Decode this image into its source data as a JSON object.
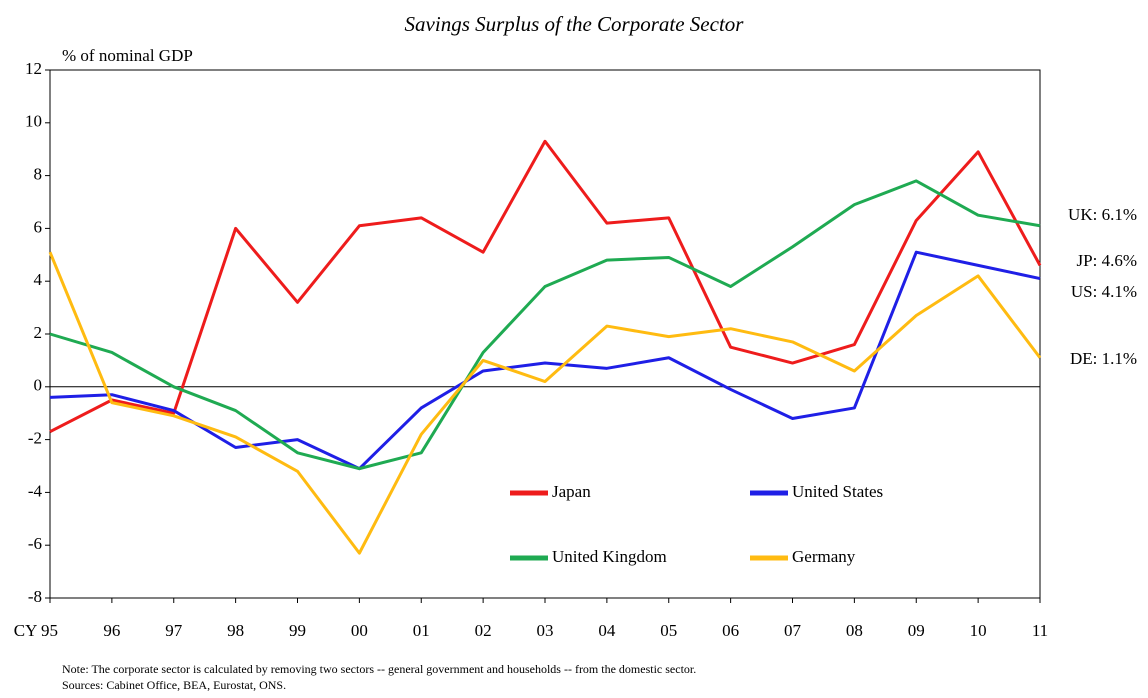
{
  "chart_data": {
    "type": "line",
    "title": "Savings Surplus of the Corporate Sector",
    "y_axis_label": "% of nominal GDP",
    "categories": [
      "CY 95",
      "96",
      "97",
      "98",
      "99",
      "00",
      "01",
      "02",
      "03",
      "04",
      "05",
      "06",
      "07",
      "08",
      "09",
      "10",
      "11"
    ],
    "series": [
      {
        "name": "Japan",
        "color": "#ee1c1c",
        "values": [
          -1.7,
          -0.5,
          -1.0,
          6.0,
          3.2,
          6.1,
          6.4,
          5.1,
          9.3,
          6.2,
          6.4,
          1.5,
          0.9,
          1.6,
          6.3,
          8.9,
          4.6
        ]
      },
      {
        "name": "United States",
        "color": "#1f1fe6",
        "values": [
          -0.4,
          -0.3,
          -0.9,
          -2.3,
          -2.0,
          -3.1,
          -0.8,
          0.6,
          0.9,
          0.7,
          1.1,
          -0.1,
          -1.2,
          -0.8,
          5.1,
          4.6,
          4.1
        ]
      },
      {
        "name": "United Kingdom",
        "color": "#1faa52",
        "values": [
          2.0,
          1.3,
          0.0,
          -0.9,
          -2.5,
          -3.1,
          -2.5,
          1.3,
          3.8,
          4.8,
          4.9,
          3.8,
          5.3,
          6.9,
          7.8,
          6.5,
          6.1
        ]
      },
      {
        "name": "Germany",
        "color": "#ffbb11",
        "values": [
          5.1,
          -0.6,
          -1.1,
          -1.9,
          -3.2,
          -6.3,
          -1.8,
          1.0,
          0.2,
          2.3,
          1.9,
          2.2,
          1.7,
          0.6,
          2.7,
          4.2,
          1.1
        ]
      }
    ],
    "ylim": [
      -8,
      12
    ],
    "yticks": [
      -8,
      -6,
      -4,
      -2,
      0,
      2,
      4,
      6,
      8,
      10,
      12
    ],
    "annotations": [
      "UK: 6.1%",
      "JP: 4.6%",
      "US: 4.1%",
      "DE: 1.1%"
    ],
    "notes": [
      "Note: The corporate sector is calculated by removing two sectors -- general government and households -- from the domestic sector.",
      "Sources: Cabinet Office, BEA, Eurostat, ONS."
    ]
  }
}
